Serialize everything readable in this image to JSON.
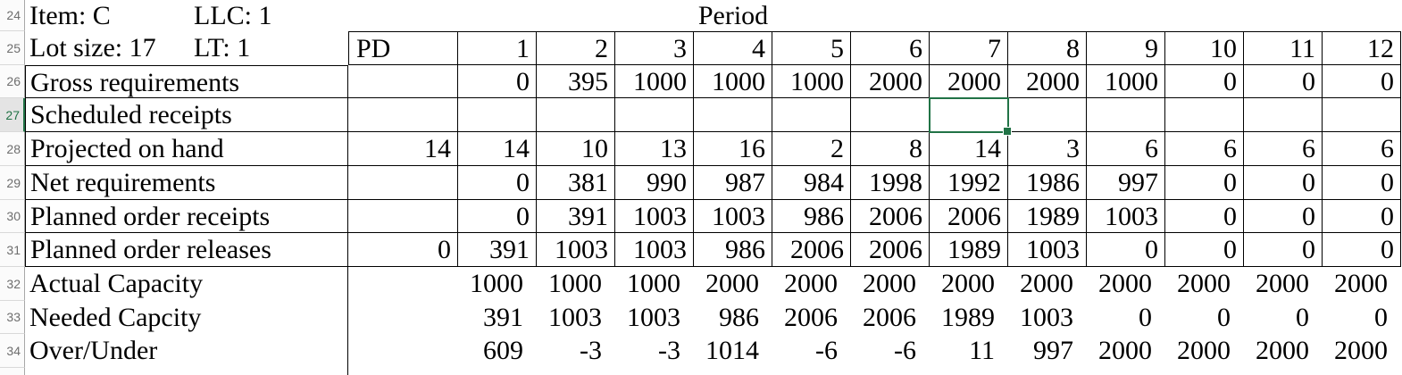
{
  "sheet": {
    "row_numbers": [
      "24",
      "25",
      "26",
      "27",
      "28",
      "29",
      "30",
      "31",
      "32",
      "33",
      "34"
    ],
    "selected_row_number": "27",
    "header": {
      "item_label": "Item: C",
      "llc_label": "LLC: 1",
      "lot_size_label": "Lot size: 17",
      "lt_label": "LT: 1",
      "period_title": "Period",
      "pd_label": "PD",
      "period_numbers": [
        "1",
        "2",
        "3",
        "4",
        "5",
        "6",
        "7",
        "8",
        "9",
        "10",
        "11",
        "12"
      ]
    },
    "rows": [
      {
        "label": "Gross requirements",
        "pd": "",
        "values": [
          "0",
          "395",
          "1000",
          "1000",
          "1000",
          "2000",
          "2000",
          "2000",
          "1000",
          "0",
          "0",
          "0"
        ]
      },
      {
        "label": "Scheduled receipts",
        "pd": "",
        "values": [
          "",
          "",
          "",
          "",
          "",
          "",
          "",
          "",
          "",
          "",
          "",
          ""
        ]
      },
      {
        "label": "Projected on hand",
        "pd": "14",
        "values": [
          "14",
          "10",
          "13",
          "16",
          "2",
          "8",
          "14",
          "3",
          "6",
          "6",
          "6",
          "6"
        ]
      },
      {
        "label": "Net requirements",
        "pd": "",
        "values": [
          "0",
          "381",
          "990",
          "987",
          "984",
          "1998",
          "1992",
          "1986",
          "997",
          "0",
          "0",
          "0"
        ]
      },
      {
        "label": "Planned order receipts",
        "pd": "",
        "values": [
          "0",
          "391",
          "1003",
          "1003",
          "986",
          "2006",
          "2006",
          "1989",
          "1003",
          "0",
          "0",
          "0"
        ]
      },
      {
        "label": "Planned order releases",
        "pd": "0",
        "values": [
          "391",
          "1003",
          "1003",
          "986",
          "2006",
          "2006",
          "1989",
          "1003",
          "0",
          "0",
          "0",
          "0"
        ]
      },
      {
        "label": "Actual Capacity",
        "pd": "",
        "values": [
          "1000",
          "1000",
          "1000",
          "2000",
          "2000",
          "2000",
          "2000",
          "2000",
          "2000",
          "2000",
          "2000",
          "2000"
        ]
      },
      {
        "label": "Needed Capcity",
        "pd": "",
        "values": [
          "391",
          "1003",
          "1003",
          "986",
          "2006",
          "2006",
          "1989",
          "1003",
          "0",
          "0",
          "0",
          "0"
        ]
      },
      {
        "label": "Over/Under",
        "pd": "",
        "values": [
          "609",
          "-3",
          "-3",
          "1014",
          "-6",
          "-6",
          "11",
          "997",
          "2000",
          "2000",
          "2000",
          "2000"
        ]
      }
    ],
    "selection": {
      "row": "27",
      "column": "7",
      "color": "#217346"
    },
    "colors": {
      "selection_green": "#217346",
      "grid_line": "#000000",
      "row_number_gray": "#6e6e6e",
      "gutter_background": "#fbfbfb",
      "selected_gutter_background": "#e4e4e4"
    }
  }
}
